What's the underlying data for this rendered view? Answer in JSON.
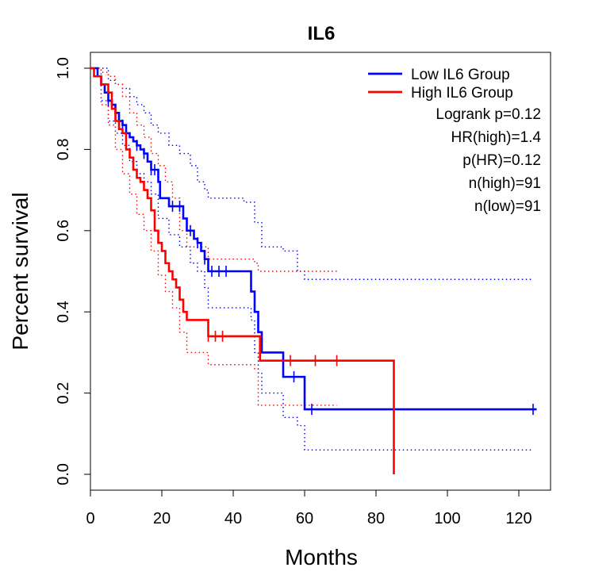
{
  "chart_data": {
    "type": "line",
    "subtype": "kaplan-meier-survival",
    "title": "IL6",
    "xlabel": "Months",
    "ylabel": "Percent survival",
    "xlim": [
      0,
      125
    ],
    "ylim": [
      0,
      1
    ],
    "xticks": [
      "0",
      "20",
      "40",
      "60",
      "80",
      "100",
      "120"
    ],
    "yticks": [
      "0.0",
      "0.2",
      "0.4",
      "0.6",
      "0.8",
      "1.0"
    ],
    "xtick_values": [
      0,
      20,
      40,
      60,
      80,
      100,
      120
    ],
    "ytick_values": [
      0,
      0.2,
      0.4,
      0.6,
      0.8,
      1.0
    ],
    "legend_position": "top-right",
    "legend": [
      {
        "label": "Low IL6 Group",
        "color": "#0000ff"
      },
      {
        "label": "High IL6 Group",
        "color": "#ff0000"
      }
    ],
    "stats": [
      "Logrank p=0.12",
      "HR(high)=1.4",
      "p(HR)=0.12",
      "n(high)=91",
      "n(low)=91"
    ],
    "series": [
      {
        "name": "Low IL6 Group",
        "color": "#0000ff",
        "steps": [
          [
            0,
            1.0
          ],
          [
            2,
            0.98
          ],
          [
            3,
            0.96
          ],
          [
            4,
            0.94
          ],
          [
            5,
            0.92
          ],
          [
            6,
            0.91
          ],
          [
            7,
            0.89
          ],
          [
            8,
            0.87
          ],
          [
            9,
            0.86
          ],
          [
            10,
            0.84
          ],
          [
            11,
            0.83
          ],
          [
            12,
            0.82
          ],
          [
            13,
            0.81
          ],
          [
            14,
            0.8
          ],
          [
            15,
            0.79
          ],
          [
            16,
            0.77
          ],
          [
            17,
            0.75
          ],
          [
            19,
            0.72
          ],
          [
            19.5,
            0.68
          ],
          [
            22,
            0.66
          ],
          [
            24,
            0.66
          ],
          [
            26,
            0.63
          ],
          [
            27,
            0.6
          ],
          [
            29,
            0.58
          ],
          [
            30,
            0.57
          ],
          [
            31,
            0.55
          ],
          [
            32,
            0.53
          ],
          [
            33,
            0.5
          ],
          [
            43,
            0.5
          ],
          [
            45,
            0.45
          ],
          [
            46,
            0.4
          ],
          [
            47,
            0.35
          ],
          [
            48,
            0.3
          ],
          [
            51,
            0.3
          ],
          [
            54,
            0.24
          ],
          [
            58,
            0.24
          ],
          [
            60,
            0.16
          ],
          [
            125,
            0.16
          ]
        ],
        "censor_x": [
          5,
          7,
          9,
          13,
          15,
          17,
          18,
          23,
          25,
          28,
          30,
          32,
          34,
          36,
          38,
          57,
          62,
          124
        ],
        "ci_upper": [
          [
            0,
            1.0
          ],
          [
            3,
            1.0
          ],
          [
            5,
            0.97
          ],
          [
            7,
            0.96
          ],
          [
            9,
            0.95
          ],
          [
            11,
            0.93
          ],
          [
            13,
            0.91
          ],
          [
            15,
            0.89
          ],
          [
            17,
            0.86
          ],
          [
            19,
            0.84
          ],
          [
            22,
            0.81
          ],
          [
            25,
            0.79
          ],
          [
            28,
            0.76
          ],
          [
            30,
            0.72
          ],
          [
            32,
            0.7
          ],
          [
            33,
            0.68
          ],
          [
            40,
            0.68
          ],
          [
            43,
            0.67
          ],
          [
            46,
            0.62
          ],
          [
            48,
            0.56
          ],
          [
            54,
            0.55
          ],
          [
            58,
            0.5
          ],
          [
            60,
            0.48
          ],
          [
            124,
            0.48
          ]
        ],
        "ci_lower": [
          [
            0,
            1.0
          ],
          [
            3,
            0.92
          ],
          [
            5,
            0.87
          ],
          [
            7,
            0.84
          ],
          [
            9,
            0.81
          ],
          [
            11,
            0.77
          ],
          [
            13,
            0.74
          ],
          [
            15,
            0.72
          ],
          [
            17,
            0.69
          ],
          [
            19,
            0.63
          ],
          [
            22,
            0.59
          ],
          [
            25,
            0.56
          ],
          [
            28,
            0.52
          ],
          [
            30,
            0.5
          ],
          [
            32,
            0.46
          ],
          [
            33,
            0.41
          ],
          [
            43,
            0.41
          ],
          [
            45,
            0.38
          ],
          [
            46,
            0.3
          ],
          [
            47,
            0.25
          ],
          [
            48,
            0.2
          ],
          [
            54,
            0.14
          ],
          [
            58,
            0.12
          ],
          [
            60,
            0.06
          ],
          [
            124,
            0.06
          ]
        ]
      },
      {
        "name": "High IL6 Group",
        "color": "#ff0000",
        "steps": [
          [
            0,
            1.0
          ],
          [
            1,
            0.98
          ],
          [
            3,
            0.96
          ],
          [
            5,
            0.94
          ],
          [
            6,
            0.9
          ],
          [
            7,
            0.87
          ],
          [
            8,
            0.85
          ],
          [
            9,
            0.84
          ],
          [
            10,
            0.8
          ],
          [
            11,
            0.78
          ],
          [
            12,
            0.75
          ],
          [
            13,
            0.73
          ],
          [
            14,
            0.72
          ],
          [
            15,
            0.7
          ],
          [
            16,
            0.68
          ],
          [
            17,
            0.65
          ],
          [
            18,
            0.6
          ],
          [
            19,
            0.57
          ],
          [
            20,
            0.55
          ],
          [
            21,
            0.52
          ],
          [
            22,
            0.5
          ],
          [
            23,
            0.48
          ],
          [
            24,
            0.46
          ],
          [
            25,
            0.43
          ],
          [
            26,
            0.4
          ],
          [
            27,
            0.38
          ],
          [
            32,
            0.38
          ],
          [
            33,
            0.34
          ],
          [
            47,
            0.34
          ],
          [
            47.5,
            0.28
          ],
          [
            85,
            0.28
          ],
          [
            85,
            0
          ]
        ],
        "censor_x": [
          33,
          35,
          37,
          56,
          63,
          69
        ],
        "ci_upper": [
          [
            0,
            1.0
          ],
          [
            3,
            0.99
          ],
          [
            5,
            0.98
          ],
          [
            7,
            0.96
          ],
          [
            9,
            0.93
          ],
          [
            11,
            0.89
          ],
          [
            13,
            0.86
          ],
          [
            15,
            0.83
          ],
          [
            17,
            0.79
          ],
          [
            19,
            0.76
          ],
          [
            21,
            0.72
          ],
          [
            23,
            0.68
          ],
          [
            25,
            0.6
          ],
          [
            27,
            0.56
          ],
          [
            33,
            0.53
          ],
          [
            46,
            0.52
          ],
          [
            47,
            0.5
          ],
          [
            69,
            0.5
          ]
        ],
        "ci_lower": [
          [
            0,
            1.0
          ],
          [
            3,
            0.91
          ],
          [
            5,
            0.86
          ],
          [
            7,
            0.8
          ],
          [
            9,
            0.74
          ],
          [
            11,
            0.69
          ],
          [
            13,
            0.64
          ],
          [
            15,
            0.6
          ],
          [
            17,
            0.55
          ],
          [
            19,
            0.49
          ],
          [
            21,
            0.45
          ],
          [
            23,
            0.41
          ],
          [
            25,
            0.35
          ],
          [
            27,
            0.3
          ],
          [
            33,
            0.27
          ],
          [
            46,
            0.26
          ],
          [
            47,
            0.17
          ],
          [
            69,
            0.17
          ]
        ]
      }
    ]
  }
}
